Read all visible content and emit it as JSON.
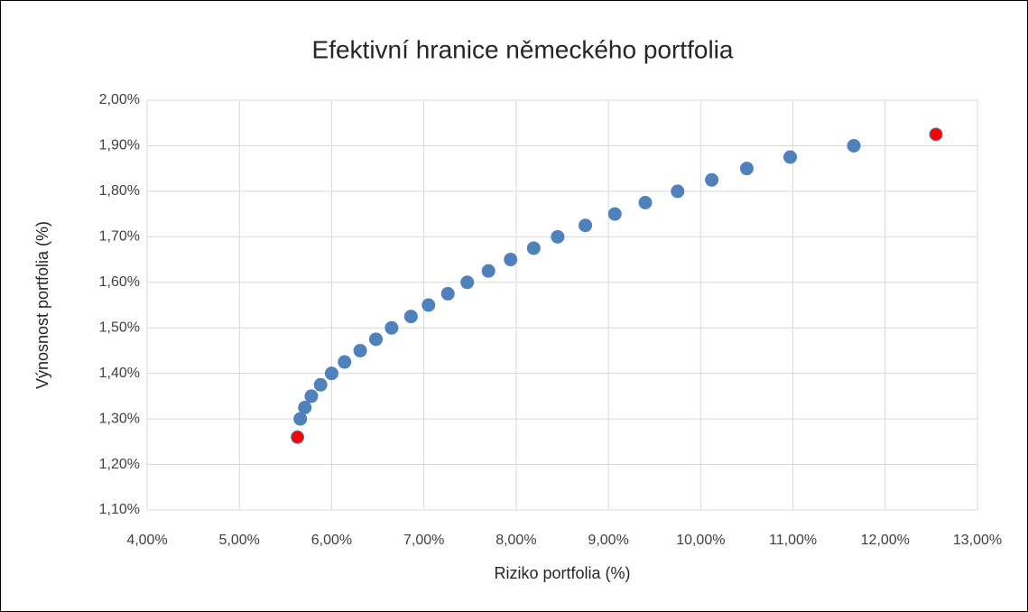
{
  "chart_data": {
    "type": "scatter",
    "title": "Efektivní hranice německého portfolia",
    "x_label": "Riziko portfolia (%)",
    "y_label": "Výnosnost portfolia (%)",
    "xlim": [
      4,
      13
    ],
    "ylim": [
      1.1,
      2.0
    ],
    "xticks": [
      {
        "value": 4,
        "label": "4,00%"
      },
      {
        "value": 5,
        "label": "5,00%"
      },
      {
        "value": 6,
        "label": "6,00%"
      },
      {
        "value": 7,
        "label": "7,00%"
      },
      {
        "value": 8,
        "label": "8,00%"
      },
      {
        "value": 9,
        "label": "9,00%"
      },
      {
        "value": 10,
        "label": "10,00%"
      },
      {
        "value": 11,
        "label": "11,00%"
      },
      {
        "value": 12,
        "label": "12,00%"
      },
      {
        "value": 13,
        "label": "13,00%"
      }
    ],
    "yticks": [
      {
        "value": 1.1,
        "label": "1,10%"
      },
      {
        "value": 1.2,
        "label": "1,20%"
      },
      {
        "value": 1.3,
        "label": "1,30%"
      },
      {
        "value": 1.4,
        "label": "1,40%"
      },
      {
        "value": 1.5,
        "label": "1,50%"
      },
      {
        "value": 1.6,
        "label": "1,60%"
      },
      {
        "value": 1.7,
        "label": "1,70%"
      },
      {
        "value": 1.8,
        "label": "1,80%"
      },
      {
        "value": 1.9,
        "label": "1,90%"
      },
      {
        "value": 2.0,
        "label": "2,00%"
      }
    ],
    "grid": true,
    "series": [
      {
        "color": "#4f81bd",
        "x": [
          5.66,
          5.71,
          5.78,
          5.88,
          6.0,
          6.14,
          6.31,
          6.48,
          6.65,
          6.86,
          7.05,
          7.26,
          7.47,
          7.7,
          7.94,
          8.19,
          8.45,
          8.75,
          9.07,
          9.4,
          9.75,
          10.12,
          10.5,
          10.97,
          11.66
        ],
        "values": [
          1.3,
          1.325,
          1.35,
          1.375,
          1.4,
          1.425,
          1.45,
          1.475,
          1.5,
          1.525,
          1.55,
          1.575,
          1.6,
          1.625,
          1.65,
          1.675,
          1.7,
          1.725,
          1.75,
          1.775,
          1.8,
          1.825,
          1.85,
          1.875,
          1.9
        ]
      },
      {
        "color": "#ff0000",
        "x": [
          5.63,
          12.55
        ],
        "values": [
          1.26,
          1.925
        ]
      }
    ]
  }
}
